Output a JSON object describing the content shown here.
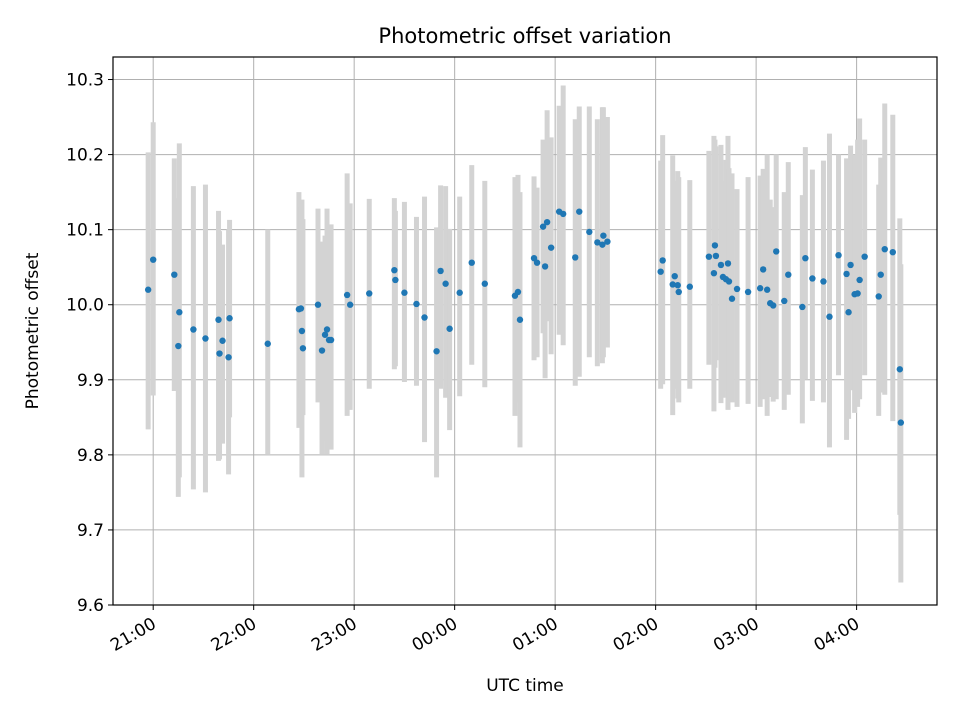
{
  "chart_data": {
    "type": "scatter",
    "title": "Photometric offset variation",
    "xlabel": "UTC time",
    "ylabel": "Photometric offset",
    "grid": true,
    "xlim_hours": [
      20.6,
      28.8
    ],
    "ylim": [
      9.6,
      10.33
    ],
    "x_tick_labels": [
      "21:00",
      "22:00",
      "23:00",
      "00:00",
      "01:00",
      "02:00",
      "03:00",
      "04:00"
    ],
    "x_tick_hours": [
      21,
      22,
      23,
      24,
      25,
      26,
      27,
      28
    ],
    "y_ticks": [
      9.6,
      9.7,
      9.8,
      9.9,
      10.0,
      10.1,
      10.2,
      10.3
    ],
    "y_tick_labels": [
      "9.6",
      "9.7",
      "9.8",
      "9.9",
      "10.0",
      "10.1",
      "10.2",
      "10.3"
    ],
    "colors": {
      "points": "#1f77b4",
      "error_bars": "#d3d3d3",
      "grid": "#b0b0b0"
    },
    "series": [
      {
        "x_hours": [
          20.95,
          21.0,
          21.21,
          21.25,
          21.26,
          21.4,
          21.52,
          21.65,
          21.66,
          21.69,
          21.75,
          21.76,
          22.14,
          22.45,
          22.47,
          22.48,
          22.49,
          22.64,
          22.68,
          22.71,
          22.73,
          22.75,
          22.77,
          22.93,
          22.96,
          23.15,
          23.4,
          23.41,
          23.5,
          23.62,
          23.7,
          23.82,
          23.86,
          23.91,
          23.95,
          24.05,
          24.17,
          24.3,
          24.6,
          24.63,
          24.65,
          24.79,
          24.82,
          24.88,
          24.9,
          24.92,
          24.96,
          25.04,
          25.08,
          25.2,
          25.24,
          25.34,
          25.42,
          25.47,
          25.48,
          25.52,
          26.05,
          26.07,
          26.17,
          26.19,
          26.22,
          26.23,
          26.34,
          26.53,
          26.58,
          26.59,
          26.6,
          26.65,
          26.67,
          26.7,
          26.72,
          26.73,
          26.76,
          26.81,
          26.92,
          27.04,
          27.07,
          27.11,
          27.14,
          27.17,
          27.2,
          27.28,
          27.32,
          27.46,
          27.49,
          27.56,
          27.67,
          27.73,
          27.82,
          27.9,
          27.92,
          27.94,
          27.98,
          28.01,
          28.03,
          28.08,
          28.22,
          28.24,
          28.28,
          28.36,
          28.43,
          28.44
        ],
        "y": [
          10.02,
          10.06,
          10.04,
          9.945,
          9.99,
          9.967,
          9.955,
          9.98,
          9.935,
          9.952,
          9.93,
          9.982,
          9.948,
          9.994,
          9.995,
          9.965,
          9.942,
          10.0,
          9.939,
          9.96,
          9.967,
          9.953,
          9.953,
          10.013,
          10.0,
          10.015,
          10.046,
          10.033,
          10.016,
          10.001,
          9.983,
          9.938,
          10.045,
          10.028,
          9.968,
          10.016,
          10.056,
          10.028,
          10.012,
          10.017,
          9.98,
          10.062,
          10.056,
          10.104,
          10.051,
          10.11,
          10.076,
          10.124,
          10.121,
          10.063,
          10.124,
          10.097,
          10.083,
          10.08,
          10.092,
          10.084,
          10.044,
          10.059,
          10.027,
          10.038,
          10.026,
          10.017,
          10.024,
          10.064,
          10.042,
          10.079,
          10.065,
          10.053,
          10.037,
          10.034,
          10.055,
          10.031,
          10.008,
          10.021,
          10.017,
          10.022,
          10.047,
          10.02,
          10.002,
          9.999,
          10.071,
          10.005,
          10.04,
          9.997,
          10.062,
          10.035,
          10.031,
          9.984,
          10.066,
          10.041,
          9.99,
          10.053,
          10.014,
          10.015,
          10.033,
          10.064,
          10.011,
          10.04,
          10.074,
          10.07,
          9.914,
          9.843
        ],
        "err_low": [
          9.834,
          9.879,
          9.885,
          9.744,
          9.77,
          9.754,
          9.75,
          9.792,
          9.794,
          9.815,
          9.774,
          9.85,
          9.8,
          9.836,
          9.875,
          9.77,
          9.853,
          9.87,
          9.8,
          9.818,
          9.8,
          9.835,
          9.807,
          9.852,
          9.86,
          9.888,
          9.914,
          9.918,
          9.897,
          9.892,
          9.817,
          9.77,
          9.888,
          9.876,
          9.833,
          9.878,
          9.92,
          9.89,
          9.852,
          9.87,
          9.81,
          9.926,
          9.93,
          9.962,
          9.902,
          9.978,
          9.934,
          9.96,
          9.946,
          9.892,
          9.904,
          9.93,
          9.918,
          9.922,
          9.93,
          9.943,
          9.888,
          9.894,
          9.853,
          9.888,
          9.875,
          9.87,
          9.888,
          9.92,
          9.858,
          9.916,
          9.926,
          9.869,
          9.876,
          9.885,
          9.86,
          9.875,
          9.87,
          9.864,
          9.868,
          9.864,
          9.874,
          9.852,
          9.877,
          9.871,
          9.874,
          9.86,
          9.88,
          9.842,
          9.9,
          9.872,
          9.87,
          9.81,
          9.906,
          9.82,
          9.848,
          9.886,
          9.856,
          9.864,
          9.874,
          9.906,
          9.852,
          9.883,
          9.88,
          9.845,
          9.72,
          9.63
        ],
        "err_high": [
          10.203,
          10.243,
          10.195,
          10.142,
          10.215,
          10.158,
          10.16,
          10.125,
          10.098,
          10.08,
          10.1,
          10.113,
          10.1,
          10.15,
          10.13,
          10.14,
          10.114,
          10.128,
          10.084,
          10.092,
          10.128,
          10.076,
          10.107,
          10.175,
          10.135,
          10.141,
          10.142,
          10.125,
          10.137,
          10.117,
          10.144,
          10.103,
          10.159,
          10.158,
          10.101,
          10.144,
          10.186,
          10.165,
          10.17,
          10.173,
          10.15,
          10.171,
          10.156,
          10.22,
          10.197,
          10.259,
          10.223,
          10.265,
          10.292,
          10.247,
          10.264,
          10.264,
          10.247,
          10.263,
          10.263,
          10.25,
          10.192,
          10.226,
          10.199,
          10.165,
          10.178,
          10.17,
          10.166,
          10.205,
          10.225,
          10.22,
          10.211,
          10.213,
          10.165,
          10.193,
          10.225,
          10.182,
          10.175,
          10.154,
          10.17,
          10.172,
          10.181,
          10.2,
          10.14,
          10.13,
          10.2,
          10.15,
          10.19,
          10.146,
          10.21,
          10.18,
          10.192,
          10.228,
          10.2,
          10.195,
          10.137,
          10.212,
          10.2,
          10.22,
          10.248,
          10.22,
          10.16,
          10.196,
          10.268,
          10.253,
          10.115,
          10.054
        ]
      }
    ]
  }
}
